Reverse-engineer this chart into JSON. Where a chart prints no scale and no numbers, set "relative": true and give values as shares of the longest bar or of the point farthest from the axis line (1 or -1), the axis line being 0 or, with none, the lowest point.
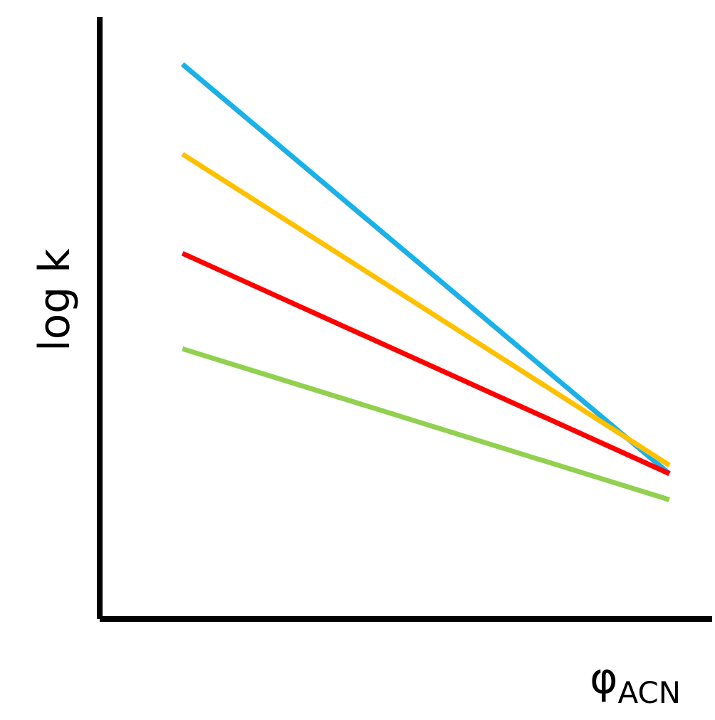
{
  "chart_data": {
    "type": "line",
    "relative": true,
    "xlabel": "φ$_{ACN}$",
    "ylabel": "log k",
    "categories": [
      null,
      null
    ],
    "series": [
      {
        "color": "#1ab0e8",
        "values": [
          1,
          0.262
        ]
      },
      {
        "color": "#ffc000",
        "values": [
          0.838,
          0.277
        ]
      },
      {
        "color": "#ff0000",
        "values": [
          0.659,
          0.262
        ]
      },
      {
        "color": "#92d050",
        "values": [
          0.487,
          0.215
        ]
      }
    ]
  }
}
